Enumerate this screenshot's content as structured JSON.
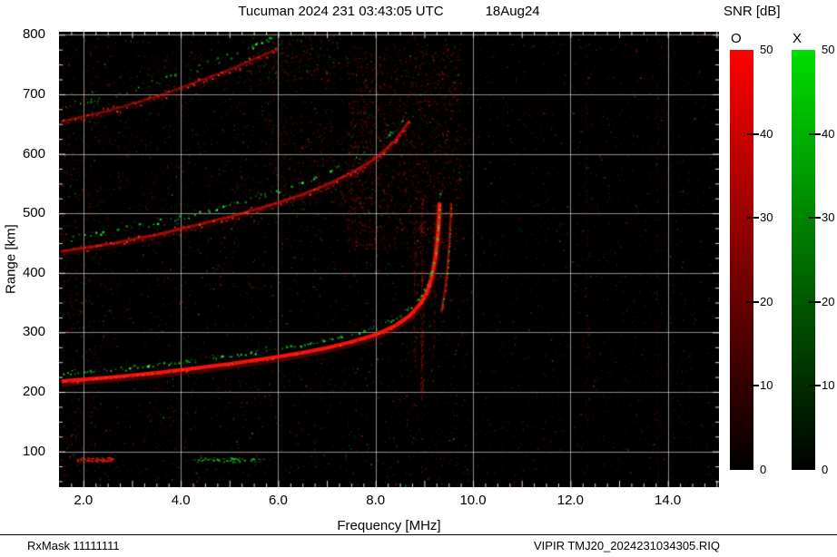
{
  "footer": {
    "left": "RxMask 11111111",
    "right": "VIPIR  TMJ20_2024231034305.RIQ"
  },
  "chart_data": {
    "type": "heatmap",
    "kind": "ionogram",
    "title": "Tucuman 2024 231 03:43:05 UTC",
    "date": "18Aug24",
    "xlabel": "Frequency [MHz]",
    "ylabel": "Range [km]",
    "colorbar_title": "SNR [dB]",
    "x_range": [
      1.5,
      15.05
    ],
    "y_range": [
      40,
      805
    ],
    "x_tick_labels": [
      "2.0",
      "4.0",
      "6.0",
      "8.0",
      "10.0",
      "12.0",
      "14.0"
    ],
    "y_tick_labels": [
      "100",
      "200",
      "300",
      "400",
      "500",
      "600",
      "700",
      "800"
    ],
    "grid": true,
    "colorbars": [
      {
        "label": "O",
        "color": "#ff0000",
        "min": 0,
        "max": 50,
        "ticks": [
          "50",
          "40",
          "30",
          "20",
          "10",
          "0"
        ]
      },
      {
        "label": "X",
        "color": "#00dd00",
        "min": 0,
        "max": 50,
        "ticks": [
          "50",
          "40",
          "30",
          "20",
          "10",
          "0"
        ]
      }
    ],
    "o_trace": [
      [
        1.55,
        218
      ],
      [
        2.0,
        221
      ],
      [
        2.5,
        224
      ],
      [
        3.0,
        228
      ],
      [
        3.5,
        232
      ],
      [
        4.0,
        237
      ],
      [
        4.5,
        242
      ],
      [
        5.0,
        247
      ],
      [
        5.5,
        253
      ],
      [
        6.0,
        259
      ],
      [
        6.5,
        266
      ],
      [
        7.0,
        274
      ],
      [
        7.5,
        284
      ],
      [
        8.0,
        296
      ],
      [
        8.4,
        311
      ],
      [
        8.7,
        328
      ],
      [
        8.9,
        346
      ],
      [
        9.05,
        366
      ],
      [
        9.15,
        391
      ],
      [
        9.22,
        421
      ],
      [
        9.27,
        456
      ],
      [
        9.3,
        492
      ],
      [
        9.31,
        518
      ]
    ],
    "branch2": [
      [
        9.35,
        335
      ],
      [
        9.42,
        368
      ],
      [
        9.47,
        405
      ],
      [
        9.51,
        448
      ],
      [
        9.54,
        492
      ],
      [
        9.55,
        518
      ]
    ],
    "hops": [
      {
        "mult": 1,
        "fmax": 9.31,
        "alpha": 0.95,
        "width": 4,
        "jitter": 2,
        "green_p": 0.6,
        "green_dy": -9,
        "green_jit": 2.5
      },
      {
        "mult": 2,
        "fmax": 8.7,
        "alpha": 0.5,
        "width": 3,
        "jitter": 5,
        "green_p": 0.45,
        "green_dy": -14,
        "green_jit": 4
      },
      {
        "mult": 3,
        "fmax": 6.3,
        "alpha": 0.4,
        "width": 2.5,
        "jitter": 6,
        "green_p": 0.4,
        "green_dy": -16,
        "green_jit": 5
      }
    ],
    "clouds": [
      {
        "f": [
          7.4,
          9.75
        ],
        "km": [
          440,
          780
        ],
        "n": 3200,
        "a": 0.38,
        "g": 0.1
      },
      {
        "f": [
          5.8,
          8.0
        ],
        "km": [
          515,
          655
        ],
        "n": 1000,
        "a": 0.28,
        "g": 0.12
      },
      {
        "f": [
          5.2,
          7.3
        ],
        "km": [
          720,
          800
        ],
        "n": 400,
        "a": 0.35,
        "g": 0.35
      },
      {
        "f": [
          1.5,
          2.35
        ],
        "km": [
          60,
          800
        ],
        "n": 800,
        "a": 0.3,
        "g": 0.15
      },
      {
        "f": [
          2.0,
          6.5
        ],
        "km": [
          610,
          770
        ],
        "n": 800,
        "a": 0.2,
        "g": 0.18
      },
      {
        "f": [
          2.2,
          7.0
        ],
        "km": [
          470,
          560
        ],
        "n": 500,
        "a": 0.16,
        "g": 0.2
      }
    ],
    "streaks": [
      {
        "f": 8.95,
        "halfw": 1.2,
        "km": [
          190,
          530
        ],
        "n": 320,
        "a": 0.5
      },
      {
        "f": 8.8,
        "halfw": 1.0,
        "km": [
          240,
          500
        ],
        "n": 180,
        "a": 0.35
      },
      {
        "f": 9.2,
        "halfw": 1.0,
        "km": [
          260,
          520
        ],
        "n": 160,
        "a": 0.3
      },
      {
        "f": 12.32,
        "halfw": 1.3,
        "km": [
          45,
          800
        ],
        "n": 300,
        "a": 0.2
      },
      {
        "f": 13.78,
        "halfw": 1.3,
        "km": [
          45,
          800
        ],
        "n": 280,
        "a": 0.2
      },
      {
        "f": 10.6,
        "halfw": 1.0,
        "km": [
          45,
          800
        ],
        "n": 150,
        "a": 0.12
      },
      {
        "f": 11.5,
        "halfw": 1.0,
        "km": [
          45,
          800
        ],
        "n": 120,
        "a": 0.1
      },
      {
        "f": 14.3,
        "halfw": 1.0,
        "km": [
          45,
          800
        ],
        "n": 120,
        "a": 0.1
      }
    ],
    "minor_echoes": [
      {
        "f": [
          1.85,
          2.6
        ],
        "km": 87,
        "n": 70,
        "color": "red"
      },
      {
        "f": [
          4.3,
          5.7
        ],
        "km": 86,
        "n": 55,
        "color": "green"
      }
    ],
    "noise": {
      "count": 15000,
      "red_fraction": 0.72,
      "max_alpha": 0.5
    }
  }
}
